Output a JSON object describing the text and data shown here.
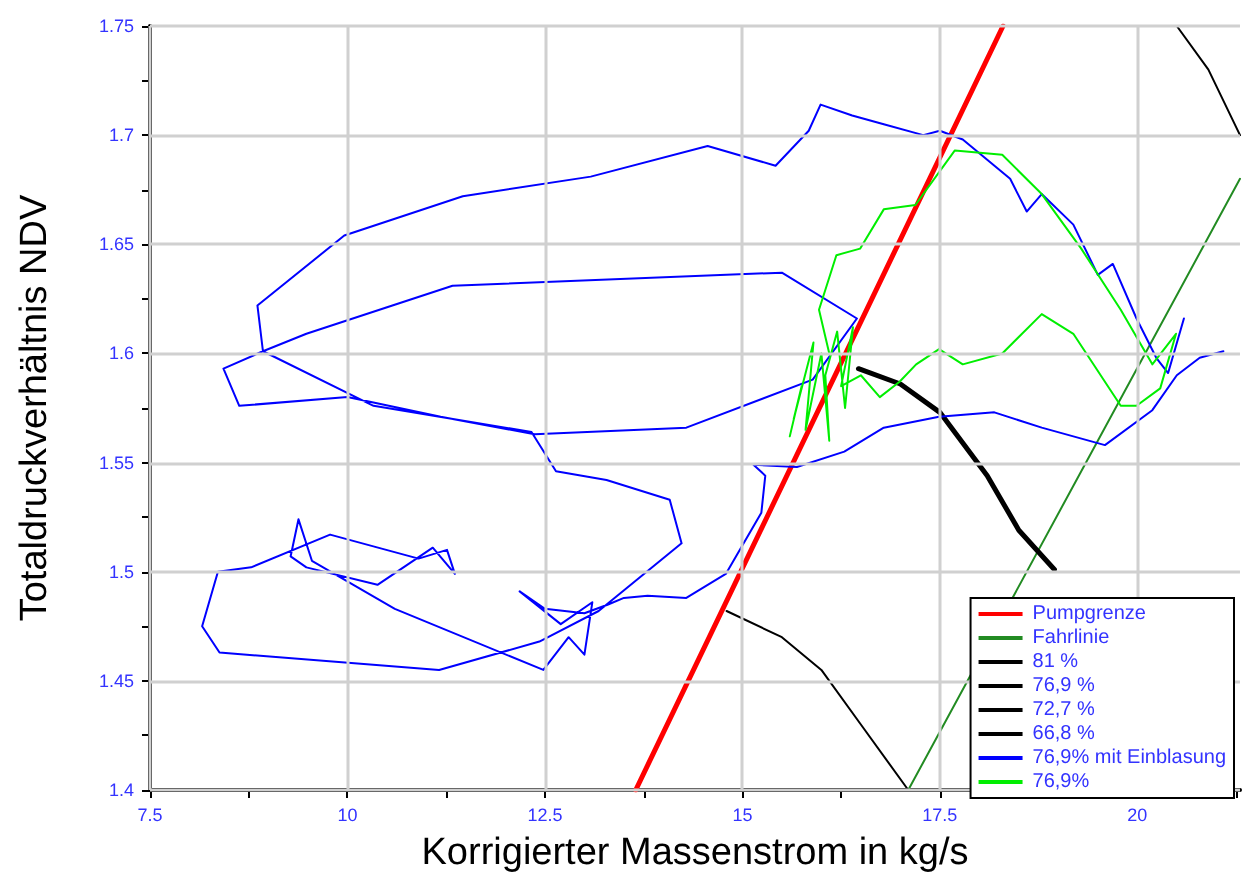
{
  "chart_data": {
    "type": "line",
    "xlabel": "Korrigierter Massenstrom in kg/s",
    "ylabel": "Totaldruckverhältnis NDV",
    "xlim": [
      7.5,
      21.3
    ],
    "ylim": [
      1.4,
      1.75
    ],
    "xticks": [
      7.5,
      {
        "value": 8.75,
        "label": null
      },
      10,
      {
        "value": 11.25,
        "label": null
      },
      12.5,
      {
        "value": 13.75,
        "label": null
      },
      15,
      {
        "value": 16.25,
        "label": null
      },
      17.5,
      {
        "value": 18.75,
        "label": null
      },
      20,
      {
        "value": 21.25,
        "label": null
      }
    ],
    "yticks": [
      1.4,
      {
        "value": 1.425,
        "label": null
      },
      1.45,
      {
        "value": 1.475,
        "label": null
      },
      1.5,
      {
        "value": 1.525,
        "label": null
      },
      1.55,
      {
        "value": 1.575,
        "label": null
      },
      1.6,
      {
        "value": 1.625,
        "label": null
      },
      1.65,
      {
        "value": 1.675,
        "label": null
      },
      1.7,
      {
        "value": 1.725,
        "label": null
      },
      1.75
    ],
    "grid": true,
    "legend": "bottom right",
    "marker": "none",
    "line_style": "solid",
    "series": [
      {
        "name": "Pumpgrenze",
        "color": "#ff0000",
        "x": [
          13.65,
          18.3
        ],
        "values": [
          1.4,
          1.75
        ]
      },
      {
        "name": "Fahrlinie",
        "color": "#228b22",
        "x": [
          17.1,
          21.3
        ],
        "values": [
          1.4,
          1.68
        ]
      },
      {
        "name": "81 %",
        "color": "#000000",
        "x": [
          20.5,
          20.9,
          21.3
        ],
        "values": [
          1.75,
          1.73,
          1.7
        ]
      },
      {
        "name": "76,9 %",
        "color": "#000000"
      },
      {
        "name": "72,7 %",
        "color": "#000000",
        "x": [
          16.47,
          17.0,
          17.5,
          18.1,
          18.5,
          18.95
        ],
        "values": [
          1.593,
          1.586,
          1.573,
          1.544,
          1.519,
          1.501
        ]
      },
      {
        "name": "66,8 %",
        "color": "#000000",
        "x": [
          14.8,
          15.5,
          16.0,
          16.5,
          17.1
        ],
        "values": [
          1.482,
          1.47,
          1.455,
          1.43,
          1.4
        ]
      },
      {
        "name": "76,9% mit Einblasung",
        "color": "#0000ff",
        "x": [
          20.59,
          20.39,
          20.24,
          19.99,
          19.69,
          19.5,
          19.19,
          18.79,
          18.6,
          18.39,
          17.79,
          17.5,
          17.29,
          16.79,
          16.39,
          15.99,
          15.84,
          15.42,
          14.56,
          13.08,
          11.46,
          9.96,
          8.86,
          8.93,
          9.48,
          11.33,
          15.5,
          16.45,
          15.89,
          14.29,
          12.37,
          11.18,
          10.0,
          8.63,
          8.43,
          8.93,
          10.33,
          12.33,
          12.64,
          13.28,
          14.08,
          14.23,
          13.18,
          12.43,
          11.16,
          8.38,
          8.16,
          8.36,
          8.78,
          9.78,
          10.9,
          11.26,
          11.36,
          11.08,
          10.38,
          9.48,
          9.28,
          9.38,
          9.55,
          10.6,
          12.48,
          12.8,
          13.0,
          13.1,
          12.7,
          12.18,
          12.5,
          13.0,
          13.3,
          13.5,
          13.8,
          14.29,
          14.79,
          15.24,
          15.29,
          15.14,
          15.69,
          16.29,
          16.79,
          17.49,
          18.19,
          18.79,
          19.59,
          20.19,
          20.5,
          20.79,
          21.09
        ],
        "values": [
          1.616,
          1.591,
          1.598,
          1.616,
          1.641,
          1.636,
          1.659,
          1.673,
          1.665,
          1.68,
          1.698,
          1.702,
          1.7,
          1.705,
          1.709,
          1.714,
          1.702,
          1.686,
          1.695,
          1.681,
          1.672,
          1.654,
          1.622,
          1.601,
          1.609,
          1.631,
          1.637,
          1.616,
          1.588,
          1.566,
          1.563,
          1.571,
          1.58,
          1.576,
          1.593,
          1.601,
          1.576,
          1.564,
          1.546,
          1.542,
          1.533,
          1.513,
          1.482,
          1.468,
          1.455,
          1.463,
          1.475,
          1.5,
          1.502,
          1.517,
          1.506,
          1.51,
          1.499,
          1.511,
          1.494,
          1.502,
          1.507,
          1.524,
          1.505,
          1.483,
          1.455,
          1.47,
          1.462,
          1.486,
          1.476,
          1.491,
          1.483,
          1.481,
          1.485,
          1.488,
          1.489,
          1.488,
          1.499,
          1.527,
          1.544,
          1.549,
          1.548,
          1.555,
          1.566,
          1.571,
          1.573,
          1.566,
          1.558,
          1.574,
          1.59,
          1.598,
          1.601
        ]
      },
      {
        "name": "76,9%",
        "color": "#00ee00",
        "x": [
          15.6,
          15.75,
          15.65,
          15.9,
          15.8,
          16.0,
          16.1,
          16.05,
          16.2,
          16.3,
          16.4,
          16.25,
          16.5,
          16.74,
          16.99,
          17.2,
          17.49,
          17.79,
          18.29,
          18.79,
          19.19,
          19.79,
          19.99,
          20.29,
          20.49,
          20.19,
          19.79,
          19.29,
          18.79,
          18.29,
          17.69,
          17.19,
          16.79,
          16.49,
          16.19,
          15.97,
          16.1
        ],
        "values": [
          1.562,
          1.585,
          1.57,
          1.605,
          1.565,
          1.6,
          1.56,
          1.59,
          1.61,
          1.575,
          1.612,
          1.585,
          1.59,
          1.58,
          1.587,
          1.595,
          1.602,
          1.595,
          1.6,
          1.618,
          1.609,
          1.576,
          1.576,
          1.584,
          1.609,
          1.595,
          1.62,
          1.648,
          1.673,
          1.691,
          1.693,
          1.668,
          1.666,
          1.648,
          1.645,
          1.62,
          1.6
        ]
      }
    ]
  }
}
